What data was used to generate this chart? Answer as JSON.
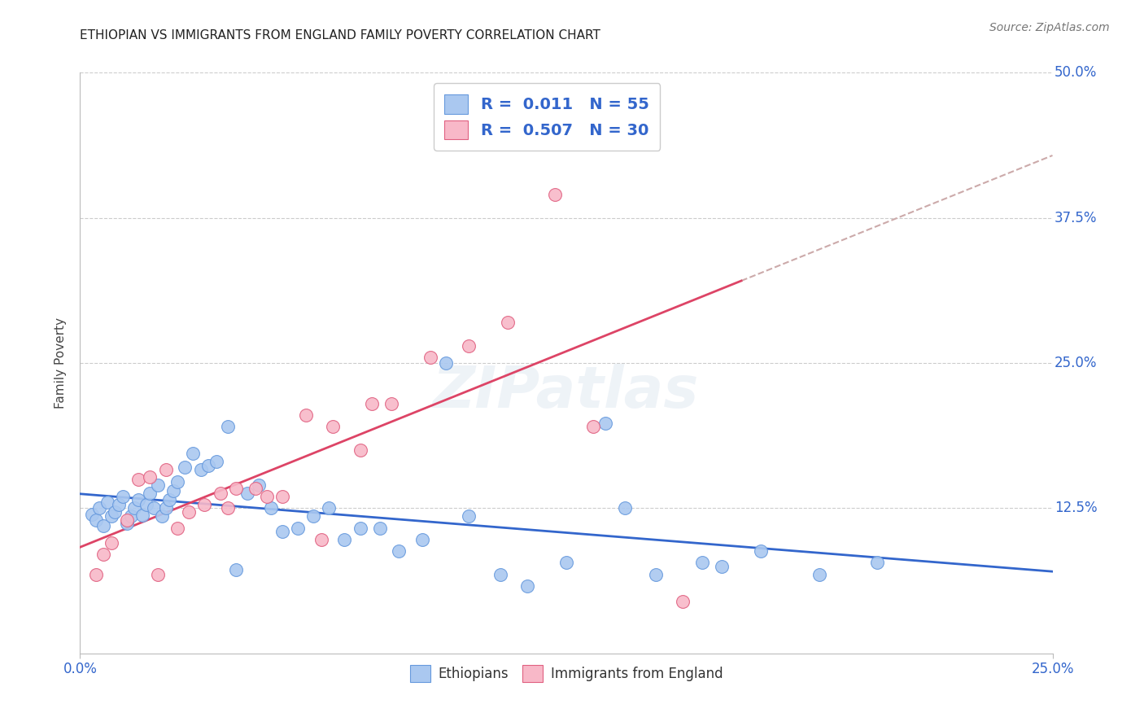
{
  "title": "ETHIOPIAN VS IMMIGRANTS FROM ENGLAND FAMILY POVERTY CORRELATION CHART",
  "source": "Source: ZipAtlas.com",
  "ylabel": "Family Poverty",
  "xlim": [
    0.0,
    0.25
  ],
  "ylim": [
    0.0,
    0.5
  ],
  "background_color": "#ffffff",
  "grid_color": "#cccccc",
  "ethiopian_fill": "#aac8f0",
  "ethiopian_edge": "#6699dd",
  "england_fill": "#f8b8c8",
  "england_edge": "#e06080",
  "trend_eth_color": "#3366cc",
  "trend_eng_color": "#dd4466",
  "trend_eng_dash_color": "#ccaaaa",
  "tick_color": "#3366cc",
  "R_eth": 0.011,
  "N_eth": 55,
  "R_eng": 0.507,
  "N_eng": 30,
  "eth_x": [
    0.003,
    0.004,
    0.005,
    0.006,
    0.007,
    0.008,
    0.009,
    0.01,
    0.011,
    0.012,
    0.013,
    0.014,
    0.015,
    0.016,
    0.017,
    0.018,
    0.019,
    0.02,
    0.021,
    0.022,
    0.023,
    0.024,
    0.025,
    0.027,
    0.029,
    0.031,
    0.033,
    0.035,
    0.038,
    0.04,
    0.043,
    0.046,
    0.049,
    0.052,
    0.056,
    0.06,
    0.064,
    0.068,
    0.072,
    0.077,
    0.082,
    0.088,
    0.094,
    0.1,
    0.108,
    0.115,
    0.125,
    0.135,
    0.148,
    0.16,
    0.175,
    0.19,
    0.205,
    0.14,
    0.165
  ],
  "eth_y": [
    0.12,
    0.115,
    0.125,
    0.11,
    0.13,
    0.118,
    0.122,
    0.128,
    0.135,
    0.112,
    0.118,
    0.125,
    0.132,
    0.119,
    0.128,
    0.138,
    0.125,
    0.145,
    0.118,
    0.125,
    0.132,
    0.14,
    0.148,
    0.16,
    0.172,
    0.158,
    0.162,
    0.165,
    0.195,
    0.072,
    0.138,
    0.145,
    0.125,
    0.105,
    0.108,
    0.118,
    0.125,
    0.098,
    0.108,
    0.108,
    0.088,
    0.098,
    0.25,
    0.118,
    0.068,
    0.058,
    0.078,
    0.198,
    0.068,
    0.078,
    0.088,
    0.068,
    0.078,
    0.125,
    0.075
  ],
  "eng_x": [
    0.004,
    0.006,
    0.008,
    0.012,
    0.015,
    0.018,
    0.022,
    0.025,
    0.028,
    0.032,
    0.036,
    0.04,
    0.045,
    0.052,
    0.058,
    0.065,
    0.072,
    0.08,
    0.09,
    0.1,
    0.11,
    0.122,
    0.132,
    0.145,
    0.155,
    0.048,
    0.062,
    0.075,
    0.038,
    0.02
  ],
  "eng_y": [
    0.068,
    0.085,
    0.095,
    0.115,
    0.15,
    0.152,
    0.158,
    0.108,
    0.122,
    0.128,
    0.138,
    0.142,
    0.142,
    0.135,
    0.205,
    0.195,
    0.175,
    0.215,
    0.255,
    0.265,
    0.285,
    0.395,
    0.195,
    0.448,
    0.045,
    0.135,
    0.098,
    0.215,
    0.125,
    0.068
  ]
}
